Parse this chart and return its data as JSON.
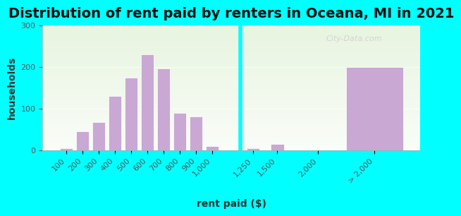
{
  "title": "Distribution of rent paid by renters in Oceana, MI in 2021",
  "xlabel": "rent paid ($)",
  "ylabel": "households",
  "background_outer": "#00FFFF",
  "background_inner_top": "#e8f5e0",
  "background_inner_bottom": "#ffffff",
  "bar_color": "#c9a8d4",
  "bar_edgecolor": "#ffffff",
  "ylim": [
    0,
    300
  ],
  "yticks": [
    0,
    100,
    200,
    300
  ],
  "categories": [
    "100",
    "200",
    "300",
    "400",
    "500",
    "600",
    "700",
    "800",
    "900",
    "1,000",
    "1,250",
    "1,500",
    "2,000",
    "> 2,000"
  ],
  "values": [
    5,
    45,
    68,
    130,
    175,
    230,
    197,
    90,
    82,
    10,
    5,
    15,
    0,
    200
  ],
  "title_fontsize": 14,
  "axis_label_fontsize": 10,
  "tick_fontsize": 8,
  "watermark": "City-Data.com"
}
